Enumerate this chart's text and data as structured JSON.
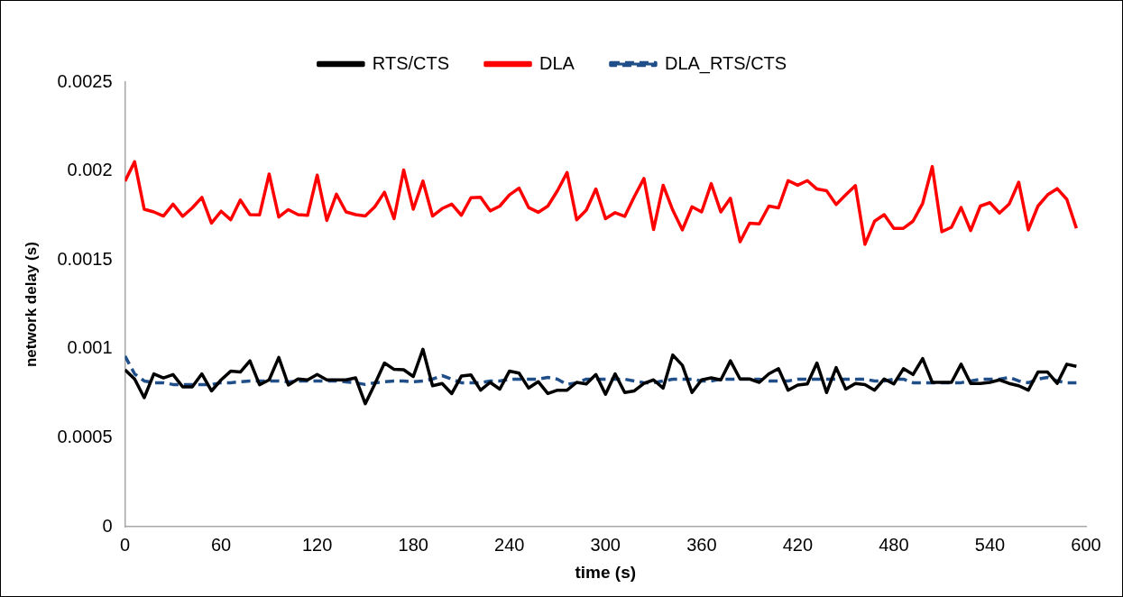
{
  "chart_data": {
    "type": "line",
    "xlabel": "time (s)",
    "ylabel": "network delay (s)",
    "x": [
      0,
      6,
      12,
      18,
      24,
      30,
      36,
      42,
      48,
      54,
      60,
      66,
      72,
      78,
      84,
      90,
      96,
      102,
      108,
      114,
      120,
      126,
      132,
      138,
      144,
      150,
      156,
      162,
      168,
      174,
      180,
      186,
      192,
      198,
      204,
      210,
      216,
      222,
      228,
      234,
      240,
      246,
      252,
      258,
      264,
      270,
      276,
      282,
      288,
      294,
      300,
      306,
      312,
      318,
      324,
      330,
      336,
      342,
      348,
      354,
      360,
      366,
      372,
      378,
      384,
      390,
      396,
      402,
      408,
      414,
      420,
      426,
      432,
      438,
      444,
      450,
      456,
      462,
      468,
      474,
      480,
      486,
      492,
      498,
      504,
      510,
      516,
      522,
      528,
      534,
      540,
      546,
      552,
      558,
      564,
      570,
      576,
      582,
      588,
      594
    ],
    "xlim": [
      0,
      600
    ],
    "xticks": [
      0,
      60,
      120,
      180,
      240,
      300,
      360,
      420,
      480,
      540,
      600
    ],
    "ylim": [
      0,
      0.0025
    ],
    "yticks": [
      0,
      0.0005,
      0.001,
      0.0015,
      0.002,
      0.0025
    ],
    "grid": false,
    "legend": "top",
    "marker": "none",
    "series": [
      {
        "name": "RTS/CTS",
        "color": "#000000",
        "line_style": "solid",
        "values": [
          0.000883,
          0.000831,
          0.000726,
          0.00086,
          0.000837,
          0.000856,
          0.000787,
          0.000787,
          0.00086,
          0.000764,
          0.000826,
          0.000875,
          0.00087,
          0.000933,
          0.000799,
          0.000826,
          0.000952,
          0.000797,
          0.000831,
          0.000826,
          0.000856,
          0.000826,
          0.000826,
          0.000826,
          0.000837,
          0.000692,
          0.000803,
          0.000921,
          0.000885,
          0.000883,
          0.000845,
          0.000998,
          0.000793,
          0.000806,
          0.000749,
          0.000847,
          0.000854,
          0.000768,
          0.000812,
          0.000774,
          0.000875,
          0.000864,
          0.00078,
          0.000816,
          0.000749,
          0.000768,
          0.000768,
          0.000812,
          0.000803,
          0.000856,
          0.000745,
          0.00086,
          0.000755,
          0.000764,
          0.000806,
          0.000826,
          0.00078,
          0.000966,
          0.000908,
          0.000755,
          0.000826,
          0.000837,
          0.000826,
          0.000933,
          0.000831,
          0.000831,
          0.000812,
          0.00086,
          0.000889,
          0.000768,
          0.000797,
          0.000803,
          0.000921,
          0.000755,
          0.000895,
          0.000774,
          0.000806,
          0.000799,
          0.000768,
          0.000831,
          0.000803,
          0.000889,
          0.000856,
          0.000946,
          0.000812,
          0.000812,
          0.000812,
          0.000914,
          0.000806,
          0.000806,
          0.000812,
          0.000826,
          0.000806,
          0.000793,
          0.000768,
          0.00087,
          0.00087,
          0.000806,
          0.000914,
          0.000902
        ]
      },
      {
        "name": "DLA",
        "color": "#ff0000",
        "line_style": "solid",
        "values": [
          0.001943,
          0.002052,
          0.001785,
          0.00177,
          0.001747,
          0.001814,
          0.001745,
          0.001793,
          0.001852,
          0.001707,
          0.001774,
          0.001726,
          0.001837,
          0.001755,
          0.001753,
          0.001983,
          0.001741,
          0.001783,
          0.001755,
          0.001751,
          0.001977,
          0.001722,
          0.00187,
          0.00177,
          0.001755,
          0.001747,
          0.001799,
          0.001881,
          0.001732,
          0.002006,
          0.001785,
          0.001944,
          0.001747,
          0.001789,
          0.001814,
          0.001751,
          0.00185,
          0.001852,
          0.001776,
          0.001803,
          0.001866,
          0.001904,
          0.001795,
          0.001768,
          0.001803,
          0.001889,
          0.001991,
          0.001726,
          0.00178,
          0.001899,
          0.001732,
          0.001766,
          0.001745,
          0.001856,
          0.001958,
          0.001671,
          0.00192,
          0.00178,
          0.001669,
          0.001799,
          0.00177,
          0.001929,
          0.00177,
          0.001847,
          0.001602,
          0.001707,
          0.001703,
          0.001803,
          0.001793,
          0.001946,
          0.00192,
          0.001946,
          0.001899,
          0.001889,
          0.001812,
          0.001866,
          0.001918,
          0.001588,
          0.001718,
          0.001755,
          0.001678,
          0.001678,
          0.001718,
          0.001818,
          0.002025,
          0.001659,
          0.001684,
          0.001795,
          0.001665,
          0.001803,
          0.001822,
          0.001764,
          0.001814,
          0.001937,
          0.001669,
          0.001803,
          0.001866,
          0.001901,
          0.001841,
          0.001678
        ]
      },
      {
        "name": "DLA_RTS/CTS",
        "color": "#1f4e89",
        "line_style": "dashed",
        "values": [
          0.00096,
          0.00086,
          0.00082,
          0.00081,
          0.00081,
          0.0008,
          0.0008,
          0.0008,
          0.0008,
          0.0008,
          0.00081,
          0.00081,
          0.000815,
          0.00082,
          0.00082,
          0.00082,
          0.00082,
          0.000815,
          0.00082,
          0.00082,
          0.00082,
          0.00082,
          0.00082,
          0.000815,
          0.00081,
          0.0008,
          0.00081,
          0.000815,
          0.00082,
          0.00082,
          0.000815,
          0.00082,
          0.00083,
          0.00085,
          0.00083,
          0.00081,
          0.00081,
          0.00081,
          0.00082,
          0.00082,
          0.00083,
          0.00083,
          0.00083,
          0.00083,
          0.00084,
          0.00083,
          0.0008,
          0.00081,
          0.00083,
          0.00083,
          0.00083,
          0.00083,
          0.00083,
          0.00082,
          0.00081,
          0.00081,
          0.00082,
          0.00083,
          0.00083,
          0.00083,
          0.00082,
          0.00082,
          0.00083,
          0.00083,
          0.00083,
          0.00083,
          0.00083,
          0.00082,
          0.00082,
          0.00082,
          0.00083,
          0.00083,
          0.00083,
          0.00083,
          0.00083,
          0.00083,
          0.00083,
          0.00083,
          0.00082,
          0.00082,
          0.00083,
          0.00083,
          0.00081,
          0.00081,
          0.00081,
          0.00081,
          0.00081,
          0.00081,
          0.00082,
          0.00083,
          0.00083,
          0.00083,
          0.00084,
          0.00082,
          0.00081,
          0.00083,
          0.00084,
          0.00082,
          0.00081,
          0.00081
        ]
      }
    ]
  }
}
